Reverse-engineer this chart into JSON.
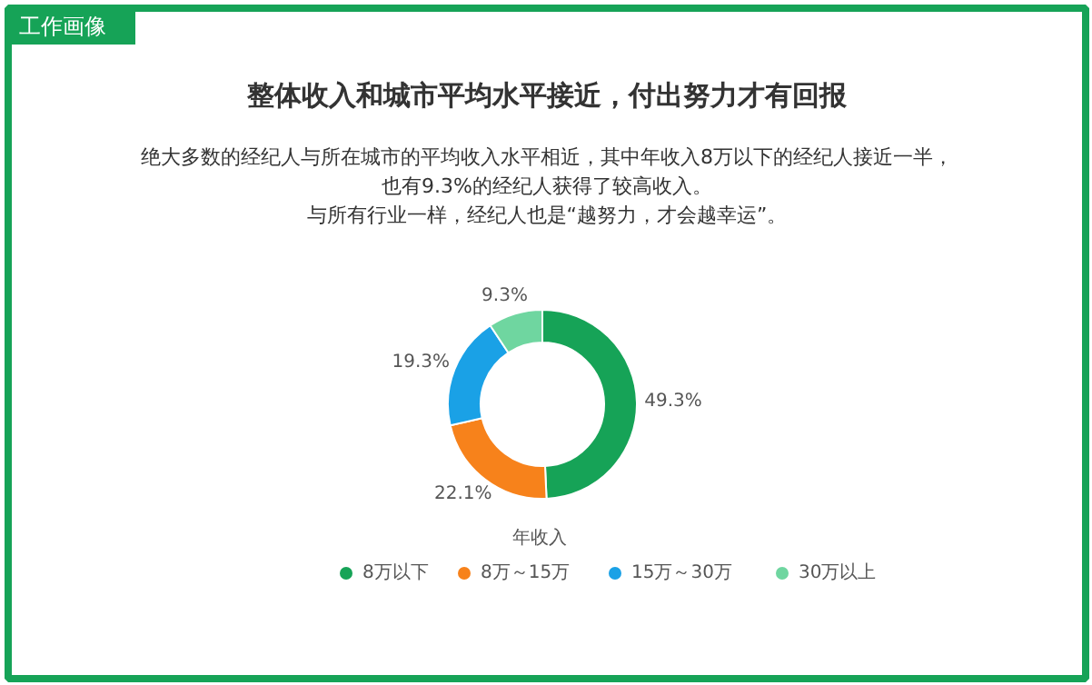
{
  "chart_data": {
    "type": "donut",
    "title": "整体收入和城市平均水平接近，付出努力才有回报",
    "annotations": [
      "工作画像",
      "绝大多数的经纪人与所在城市的平均收入水平相近，其中年收入8万以下的经纪人接近一半，",
      "也有9.3%的经纪人获得了较高收入。",
      "与所有行业一样，经纪人也是“越努力，才会越幸运”。"
    ],
    "legend_title": "年收入",
    "categories": [
      "8万以下",
      "8万～15万",
      "15万～30万",
      "30万以上"
    ],
    "values": [
      49.3,
      22.1,
      19.3,
      9.3
    ],
    "value_labels": [
      "49.3%",
      "22.1%",
      "19.3%",
      "9.3%"
    ],
    "colors": [
      "#16a357",
      "#f7821b",
      "#1aa1e6",
      "#6fd6a0"
    ],
    "legend": "bottom"
  }
}
